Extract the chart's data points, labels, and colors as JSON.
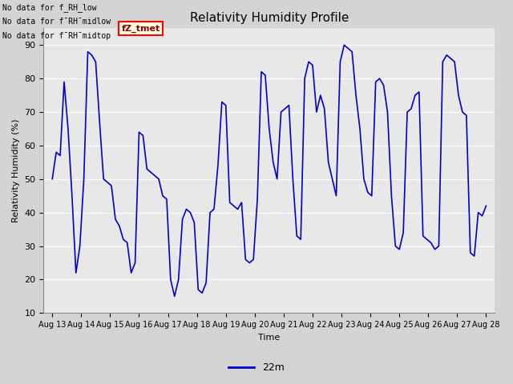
{
  "title": "Relativity Humidity Profile",
  "xlabel": "Time",
  "ylabel": "Relativity Humidity (%)",
  "ylim": [
    10,
    95
  ],
  "yticks": [
    10,
    20,
    30,
    40,
    50,
    60,
    70,
    80,
    90
  ],
  "line_color": "#0000CC",
  "line_width": 1.2,
  "legend_label": "22m",
  "legend_color": "#0000CC",
  "fig_facecolor": "#D4D4D4",
  "plot_facecolor": "#E8E8E8",
  "no_data_texts": [
    "No data for f_RH_low",
    "No data for f¯RH¯midlow",
    "No data for f¯RH¯midtop"
  ],
  "tz_tmet_label": "fZ_tmet",
  "x_tick_labels": [
    "Aug 13",
    "Aug 14",
    "Aug 15",
    "Aug 16",
    "Aug 17",
    "Aug 18",
    "Aug 19",
    "Aug 20",
    "Aug 21",
    "Aug 22",
    "Aug 23",
    "Aug 24",
    "Aug 25",
    "Aug 26",
    "Aug 27",
    "Aug 28"
  ],
  "humidity_values": [
    50,
    58,
    57,
    79,
    65,
    45,
    22,
    30,
    50,
    88,
    87,
    85,
    67,
    50,
    49,
    48,
    38,
    36,
    32,
    31,
    22,
    25,
    64,
    63,
    53,
    52,
    51,
    50,
    45,
    44,
    20,
    15,
    20,
    38,
    41,
    40,
    37,
    17,
    16,
    19,
    40,
    41,
    54,
    73,
    72,
    43,
    42,
    41,
    43,
    26,
    25,
    26,
    44,
    82,
    81,
    65,
    55,
    50,
    70,
    71,
    72,
    50,
    33,
    32,
    80,
    85,
    84,
    70,
    75,
    71,
    55,
    50,
    45,
    85,
    90,
    89,
    88,
    75,
    65,
    50,
    46,
    45,
    79,
    80,
    78,
    70,
    45,
    30,
    29,
    34,
    70,
    71,
    75,
    76,
    33,
    32,
    31,
    29,
    30,
    85,
    87,
    86,
    85,
    75,
    70,
    69,
    28,
    27,
    40,
    39,
    42
  ],
  "figsize": [
    6.4,
    4.8
  ],
  "dpi": 100
}
